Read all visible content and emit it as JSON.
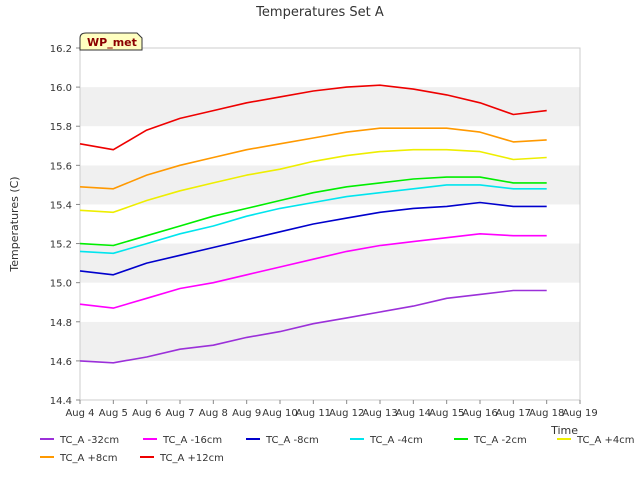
{
  "chart_data": {
    "type": "line",
    "title": "Temperatures Set A",
    "xlabel": "Time",
    "ylabel": "Temperatures (C)",
    "site_badge": "WP_met",
    "ylim": [
      14.4,
      16.2
    ],
    "yticks": [
      14.4,
      14.6,
      14.8,
      15.0,
      15.2,
      15.4,
      15.6,
      15.8,
      16.0,
      16.2
    ],
    "ytick_labels": [
      "14.4",
      "14.6",
      "14.8",
      "15.0",
      "15.2",
      "15.4",
      "15.6",
      "15.8",
      "16.0",
      "16.2"
    ],
    "xlim": [
      "Aug 4",
      "Aug 19"
    ],
    "xtick_labels": [
      "Aug 4",
      "Aug 5",
      "Aug 6",
      "Aug 7",
      "Aug 8",
      "Aug 9",
      "Aug 10",
      "Aug 11",
      "Aug 12",
      "Aug 13",
      "Aug 14",
      "Aug 15",
      "Aug 16",
      "Aug 17",
      "Aug 18",
      "Aug 19"
    ],
    "grid": "horizontal bands",
    "legend_position": "bottom",
    "series": [
      {
        "name": "TC_A -32cm",
        "color": "#9b30d9",
        "x": [
          "Aug 4",
          "Aug 5",
          "Aug 6",
          "Aug 7",
          "Aug 8",
          "Aug 9",
          "Aug 10",
          "Aug 11",
          "Aug 12",
          "Aug 13",
          "Aug 14",
          "Aug 15",
          "Aug 16",
          "Aug 17",
          "Aug 18"
        ],
        "values": [
          14.6,
          14.59,
          14.62,
          14.66,
          14.68,
          14.72,
          14.75,
          14.79,
          14.82,
          14.85,
          14.88,
          14.92,
          14.94,
          14.96,
          14.96
        ]
      },
      {
        "name": "TC_A -16cm",
        "color": "#ff00ff",
        "x": [
          "Aug 4",
          "Aug 5",
          "Aug 6",
          "Aug 7",
          "Aug 8",
          "Aug 9",
          "Aug 10",
          "Aug 11",
          "Aug 12",
          "Aug 13",
          "Aug 14",
          "Aug 15",
          "Aug 16",
          "Aug 17",
          "Aug 18"
        ],
        "values": [
          14.89,
          14.87,
          14.92,
          14.97,
          15.0,
          15.04,
          15.08,
          15.12,
          15.16,
          15.19,
          15.21,
          15.23,
          15.25,
          15.24,
          15.24
        ]
      },
      {
        "name": "TC_A -8cm",
        "color": "#0000cc",
        "x": [
          "Aug 4",
          "Aug 5",
          "Aug 6",
          "Aug 7",
          "Aug 8",
          "Aug 9",
          "Aug 10",
          "Aug 11",
          "Aug 12",
          "Aug 13",
          "Aug 14",
          "Aug 15",
          "Aug 16",
          "Aug 17",
          "Aug 18"
        ],
        "values": [
          15.06,
          15.04,
          15.1,
          15.14,
          15.18,
          15.22,
          15.26,
          15.3,
          15.33,
          15.36,
          15.38,
          15.39,
          15.41,
          15.39,
          15.39
        ]
      },
      {
        "name": "TC_A -4cm",
        "color": "#00e5ee",
        "x": [
          "Aug 4",
          "Aug 5",
          "Aug 6",
          "Aug 7",
          "Aug 8",
          "Aug 9",
          "Aug 10",
          "Aug 11",
          "Aug 12",
          "Aug 13",
          "Aug 14",
          "Aug 15",
          "Aug 16",
          "Aug 17",
          "Aug 18"
        ],
        "values": [
          15.16,
          15.15,
          15.2,
          15.25,
          15.29,
          15.34,
          15.38,
          15.41,
          15.44,
          15.46,
          15.48,
          15.5,
          15.5,
          15.48,
          15.48
        ]
      },
      {
        "name": "TC_A -2cm",
        "color": "#00ee00",
        "x": [
          "Aug 4",
          "Aug 5",
          "Aug 6",
          "Aug 7",
          "Aug 8",
          "Aug 9",
          "Aug 10",
          "Aug 11",
          "Aug 12",
          "Aug 13",
          "Aug 14",
          "Aug 15",
          "Aug 16",
          "Aug 17",
          "Aug 18"
        ],
        "values": [
          15.2,
          15.19,
          15.24,
          15.29,
          15.34,
          15.38,
          15.42,
          15.46,
          15.49,
          15.51,
          15.53,
          15.54,
          15.54,
          15.51,
          15.51
        ]
      },
      {
        "name": "TC_A +4cm",
        "color": "#eeee00",
        "x": [
          "Aug 4",
          "Aug 5",
          "Aug 6",
          "Aug 7",
          "Aug 8",
          "Aug 9",
          "Aug 10",
          "Aug 11",
          "Aug 12",
          "Aug 13",
          "Aug 14",
          "Aug 15",
          "Aug 16",
          "Aug 17",
          "Aug 18"
        ],
        "values": [
          15.37,
          15.36,
          15.42,
          15.47,
          15.51,
          15.55,
          15.58,
          15.62,
          15.65,
          15.67,
          15.68,
          15.68,
          15.67,
          15.63,
          15.64
        ]
      },
      {
        "name": "TC_A +8cm",
        "color": "#ff9900",
        "x": [
          "Aug 4",
          "Aug 5",
          "Aug 6",
          "Aug 7",
          "Aug 8",
          "Aug 9",
          "Aug 10",
          "Aug 11",
          "Aug 12",
          "Aug 13",
          "Aug 14",
          "Aug 15",
          "Aug 16",
          "Aug 17",
          "Aug 18"
        ],
        "values": [
          15.49,
          15.48,
          15.55,
          15.6,
          15.64,
          15.68,
          15.71,
          15.74,
          15.77,
          15.79,
          15.79,
          15.79,
          15.77,
          15.72,
          15.73
        ]
      },
      {
        "name": "TC_A +12cm",
        "color": "#ee0000",
        "x": [
          "Aug 4",
          "Aug 5",
          "Aug 6",
          "Aug 7",
          "Aug 8",
          "Aug 9",
          "Aug 10",
          "Aug 11",
          "Aug 12",
          "Aug 13",
          "Aug 14",
          "Aug 15",
          "Aug 16",
          "Aug 17",
          "Aug 18"
        ],
        "values": [
          15.71,
          15.68,
          15.78,
          15.84,
          15.88,
          15.92,
          15.95,
          15.98,
          16.0,
          16.01,
          15.99,
          15.96,
          15.92,
          15.86,
          15.88
        ]
      }
    ]
  }
}
